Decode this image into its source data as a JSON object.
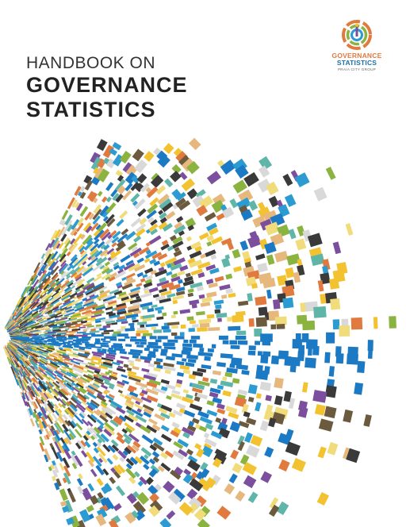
{
  "cover": {
    "title_line1": "HANDBOOK ON",
    "title_line2": "GOVERNANCE",
    "title_line3": "STATISTICS"
  },
  "logo": {
    "line1": "GOVERNANCE",
    "line2": "STATISTICS",
    "line3": "PRAIA CITY GROUP",
    "colors": [
      "#e07a3f",
      "#f2c230",
      "#8ab33f",
      "#2b9bd1",
      "#1c6fa8",
      "#7b4f9d"
    ]
  },
  "artwork": {
    "description_icon": "radial-data-burst",
    "palette": [
      "#1c7ac4",
      "#2b9bd1",
      "#f2c230",
      "#e07a3f",
      "#8ab33f",
      "#7b4f9d",
      "#5fb6a8",
      "#e6b87e",
      "#d9d9d9",
      "#6b5a3e",
      "#f0dc7a",
      "#3a3a3a"
    ],
    "blue": "#1c7ac4"
  }
}
